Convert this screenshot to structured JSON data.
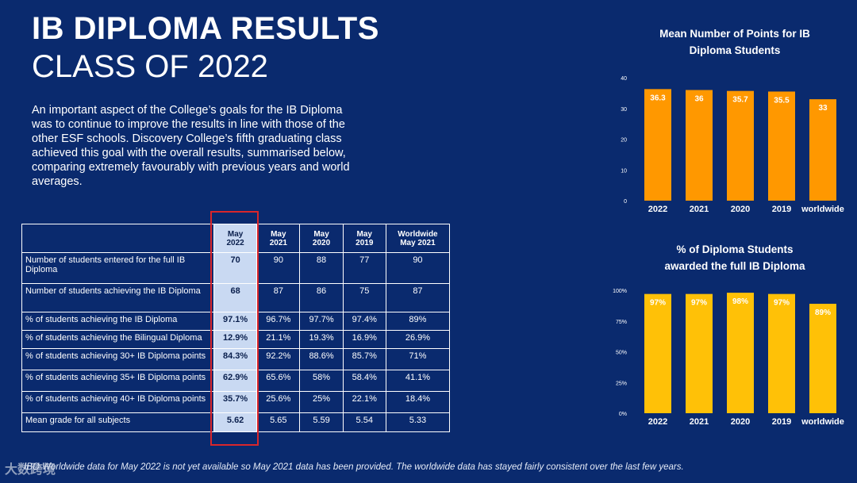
{
  "header": {
    "title_line1": "IB DIPLOMA RESULTS",
    "title_line2": "CLASS OF 2022"
  },
  "intro": "An important aspect of the College’s goals for the IB Diploma was  to continue to improve the results in line with those of the other ESF schools. Discovery College’s fifth graduating class achieved this goal with the overall results, summarised below, comparing extremely favourably  with previous years and world averages.",
  "table": {
    "columns": [
      {
        "line1": "May",
        "line2": "2022"
      },
      {
        "line1": "May",
        "line2": "2021"
      },
      {
        "line1": "May",
        "line2": "2020"
      },
      {
        "line1": "May",
        "line2": "2019"
      },
      {
        "line1": "Worldwide",
        "line2": "May 2021"
      }
    ],
    "rows": [
      {
        "label": "Number of students entered for the full IB Diploma",
        "values": [
          "70",
          "90",
          "88",
          "77",
          "90"
        ]
      },
      {
        "label": "Number of students achieving the IB Diploma",
        "values": [
          "68",
          "87",
          "86",
          "75",
          "87"
        ]
      },
      {
        "label": "% of students achieving the IB Diploma",
        "values": [
          "97.1%",
          "96.7%",
          "97.7%",
          "97.4%",
          "89%"
        ]
      },
      {
        "label": "% of students achieving the Bilingual Diploma",
        "values": [
          "12.9%",
          "21.1%",
          "19.3%",
          "16.9%",
          "26.9%"
        ]
      },
      {
        "label": "% of students achieving 30+ IB Diploma points",
        "values": [
          "84.3%",
          "92.2%",
          "88.6%",
          "85.7%",
          "71%"
        ]
      },
      {
        "label": "% of students achieving 35+ IB Diploma points",
        "values": [
          "62.9%",
          "65.6%",
          "58%",
          "58.4%",
          "41.1%"
        ]
      },
      {
        "label": "% of students achieving 40+ IB Diploma points",
        "values": [
          "35.7%",
          "25.6%",
          "25%",
          "22.1%",
          "18.4%"
        ]
      },
      {
        "label": "Mean grade for all subjects",
        "values": [
          "5.62",
          "5.65",
          "5.59",
          "5.54",
          "5.33"
        ]
      }
    ]
  },
  "footnote": "IBO Worldwide data for May 2022 is not yet available so May 2021 data has been provided. The worldwide data has stayed fairly consistent over the last few years.",
  "watermark": "大数跨境",
  "colors": {
    "background": "#0a2a6e",
    "bar_orange": "#ff9800",
    "bar_yellow": "#ffc107",
    "highlight_cell": "#c9d9f2",
    "highlight_border": "#d9262b"
  },
  "chart_data": [
    {
      "type": "bar",
      "title_line1": "Mean Number of Points for  IB",
      "title_line2": "Diploma Students",
      "categories": [
        "2022",
        "2021",
        "2020",
        "2019",
        "worldwide"
      ],
      "values": [
        36.3,
        36,
        35.7,
        35.5,
        33
      ],
      "data_labels": [
        "36.3",
        "36",
        "35.7",
        "35.5",
        "33"
      ],
      "ylim": [
        0,
        40
      ],
      "yticks": [
        "0",
        "10",
        "20",
        "30",
        "40"
      ],
      "color": "#ff9800",
      "grid": false
    },
    {
      "type": "bar",
      "title_line1": "% of Diploma Students",
      "title_line2": "awarded the full IB  Diploma",
      "categories": [
        "2022",
        "2021",
        "2020",
        "2019",
        "worldwide"
      ],
      "values": [
        97,
        97,
        98,
        97,
        89
      ],
      "data_labels": [
        "97%",
        "97%",
        "98%",
        "97%",
        "89%"
      ],
      "ylim": [
        0,
        100
      ],
      "yticks": [
        "0%",
        "25%",
        "50%",
        "75%",
        "100%"
      ],
      "color": "#ffc107",
      "grid": false
    }
  ]
}
